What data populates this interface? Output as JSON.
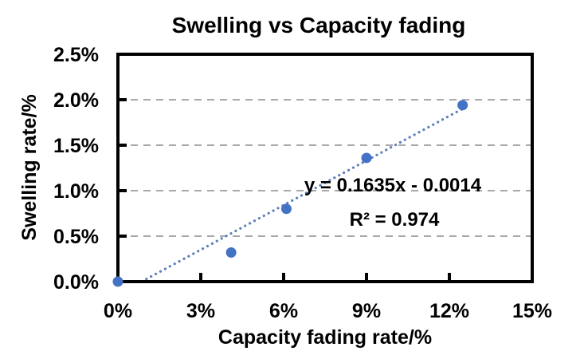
{
  "chart_data": {
    "type": "scatter",
    "title": "Swelling vs Capacity fading",
    "xlabel": "Capacity fading rate/%",
    "ylabel": "Swelling rate/%",
    "xlim": [
      0,
      15
    ],
    "ylim": [
      0,
      2.5
    ],
    "x_tick_values": [
      0,
      3,
      6,
      9,
      12,
      15
    ],
    "x_tick_labels": [
      "0%",
      "3%",
      "6%",
      "9%",
      "12%",
      "15%"
    ],
    "y_tick_values": [
      0,
      0.5,
      1,
      1.5,
      2,
      2.5
    ],
    "y_tick_labels": [
      "0.0%",
      "0.5%",
      "1.0%",
      "1.5%",
      "2.0%",
      "2.5%"
    ],
    "grid": "horizontal dashed",
    "legend": "none",
    "points": [
      {
        "x": 0,
        "y": 0
      },
      {
        "x": 4.1,
        "y": 0.32
      },
      {
        "x": 6.1,
        "y": 0.8
      },
      {
        "x": 9.0,
        "y": 1.36
      },
      {
        "x": 12.48,
        "y": 1.94
      }
    ],
    "trendline": {
      "style": "dotted",
      "slope_pct": 0.1635,
      "intercept_pct": -0.14,
      "x_start": 0.86,
      "x_end": 12.55,
      "equation_label": "y = 0.1635x - 0.0014",
      "r2_label": "R² = 0.974"
    },
    "colors": {
      "marker": "#4472c4",
      "trendline": "#5d7fba",
      "gridline": "#a8a8a8",
      "axis": "#000000",
      "text": "#000000",
      "background": "#ffffff"
    }
  }
}
